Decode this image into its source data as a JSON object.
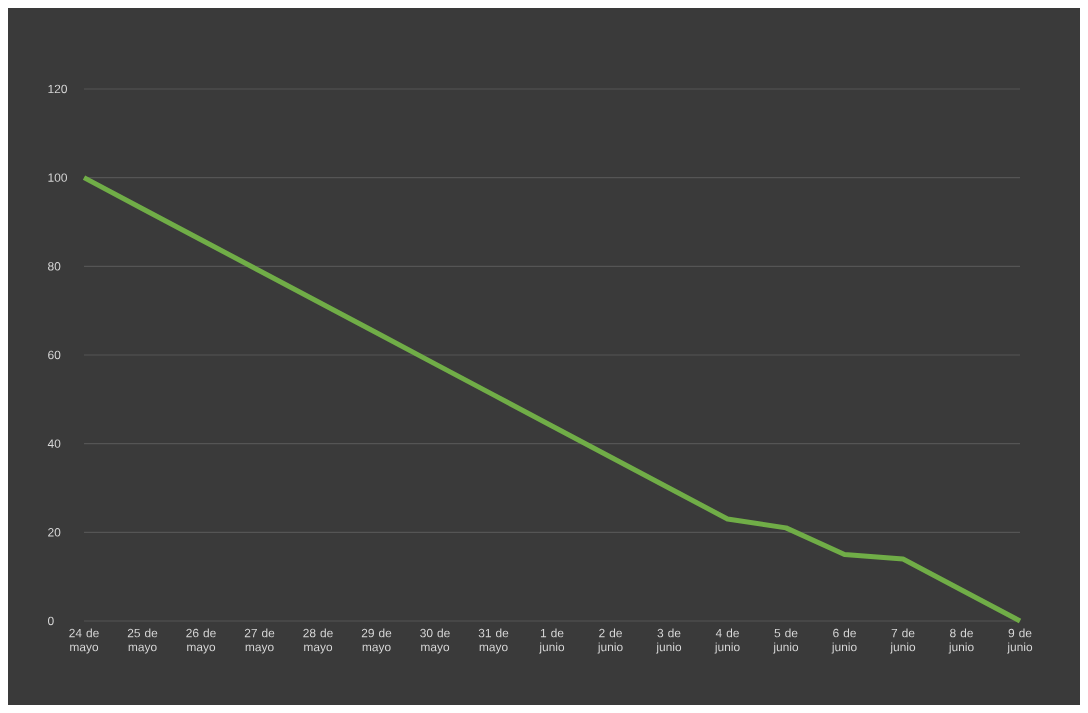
{
  "chart_data": {
    "type": "line",
    "categories": [
      "24 de mayo",
      "25 de mayo",
      "26 de mayo",
      "27 de mayo",
      "28 de mayo",
      "29 de mayo",
      "30 de mayo",
      "31 de mayo",
      "1 de junio",
      "2 de junio",
      "3 de junio",
      "4 de junio",
      "5 de junio",
      "6 de junio",
      "7 de junio",
      "8 de junio",
      "9 de junio"
    ],
    "series": [
      {
        "color": "#70ad47",
        "values": [
          100,
          93,
          86,
          79,
          72,
          65,
          58,
          51,
          44,
          37,
          30,
          23,
          21,
          15,
          14,
          7,
          0
        ]
      }
    ],
    "ylim": [
      0,
      120
    ],
    "yticks": [
      0,
      20,
      40,
      60,
      80,
      100,
      120
    ],
    "grid": "y",
    "marker": "none",
    "line_style": "solid"
  }
}
